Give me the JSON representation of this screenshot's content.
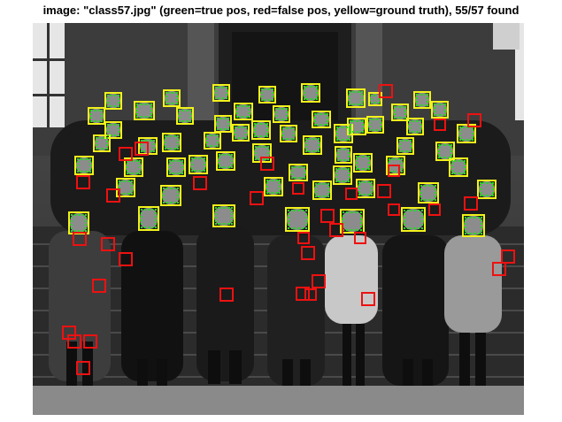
{
  "figure": {
    "title": "image: \"class57.jpg\" (green=true pos, red=false pos, yellow=ground truth), 55/57 found"
  },
  "legend_colors": {
    "ground_truth": "#f2f21a",
    "true_positive": "#22dd22",
    "false_positive": "#ee1111"
  },
  "counts": {
    "found": 55,
    "total": 57
  }
}
